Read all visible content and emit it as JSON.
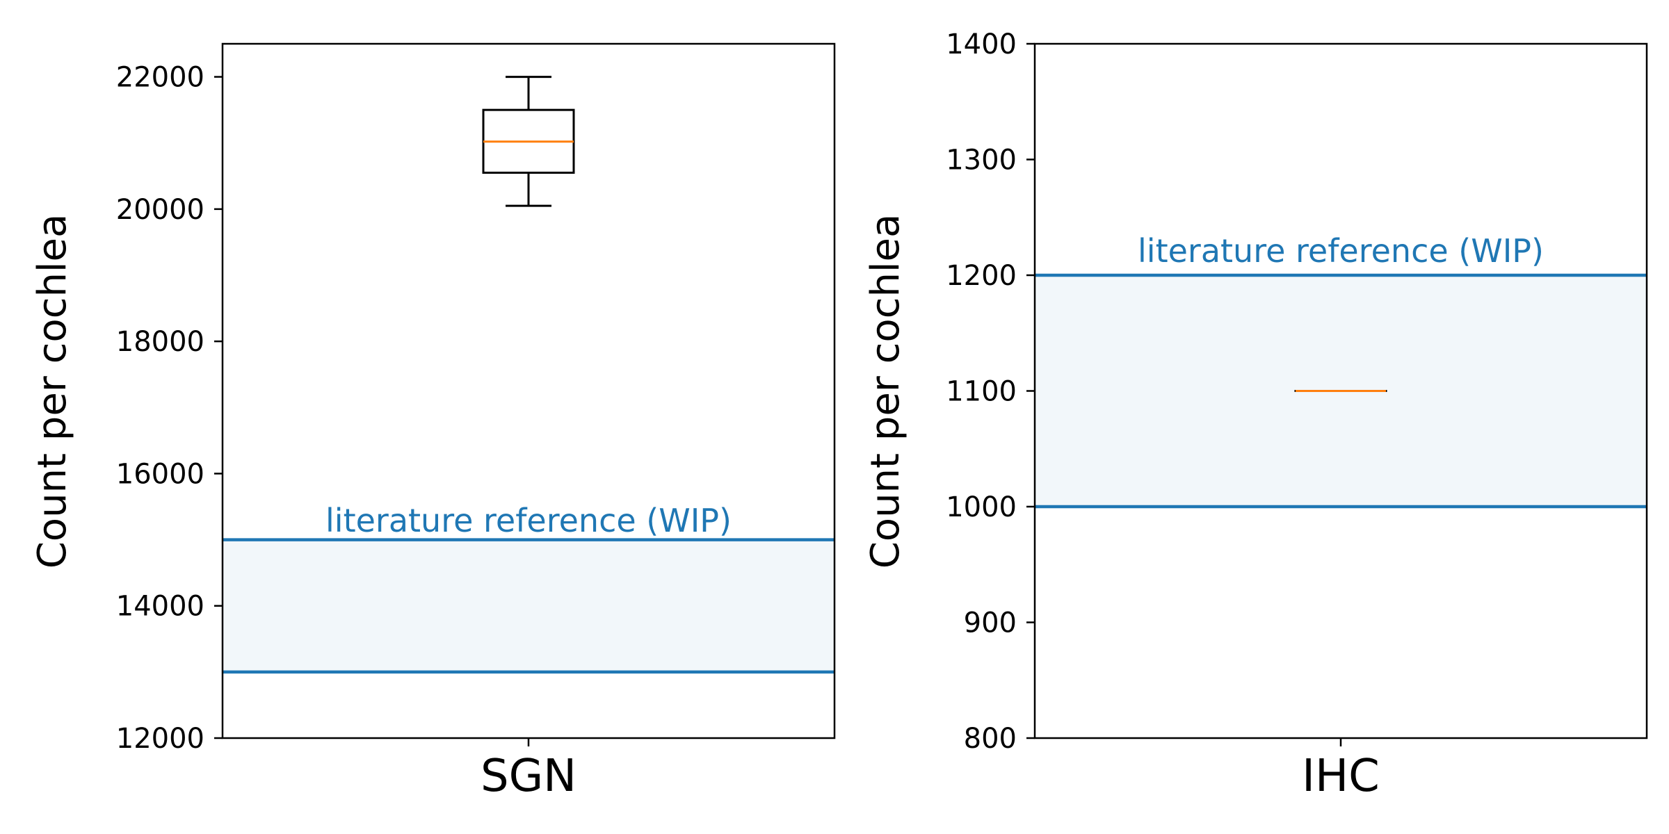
{
  "colors": {
    "reference_line": "#1f77b4",
    "reference_band": "#f2f7fa",
    "median": "#ff7f0e",
    "box": "#000000",
    "axes": "#000000",
    "background": "#ffffff"
  },
  "chart_data": [
    {
      "type": "box",
      "categories": [
        "SGN"
      ],
      "ylabel": "Count per cochlea",
      "ylim": [
        12000,
        22500
      ],
      "yticks": [
        12000,
        14000,
        16000,
        18000,
        20000,
        22000
      ],
      "ytick_labels": [
        "12000",
        "14000",
        "16000",
        "18000",
        "20000",
        "22000"
      ],
      "grid": false,
      "box": {
        "whisker_low": 20050,
        "q1": 20550,
        "median": 21020,
        "q3": 21500,
        "whisker_high": 22000
      },
      "reference": {
        "label": "literature reference (WIP)",
        "low": 13000,
        "high": 15000
      }
    },
    {
      "type": "box",
      "categories": [
        "IHC"
      ],
      "ylabel": "Count per cochlea",
      "ylim": [
        800,
        1400
      ],
      "yticks": [
        800,
        900,
        1000,
        1100,
        1200,
        1300,
        1400
      ],
      "ytick_labels": [
        "800",
        "900",
        "1000",
        "1100",
        "1200",
        "1300",
        "1400"
      ],
      "grid": false,
      "box": {
        "whisker_low": 1100,
        "q1": 1100,
        "median": 1100,
        "q3": 1100,
        "whisker_high": 1100
      },
      "reference": {
        "label": "literature reference (WIP)",
        "low": 1000,
        "high": 1200
      }
    }
  ]
}
